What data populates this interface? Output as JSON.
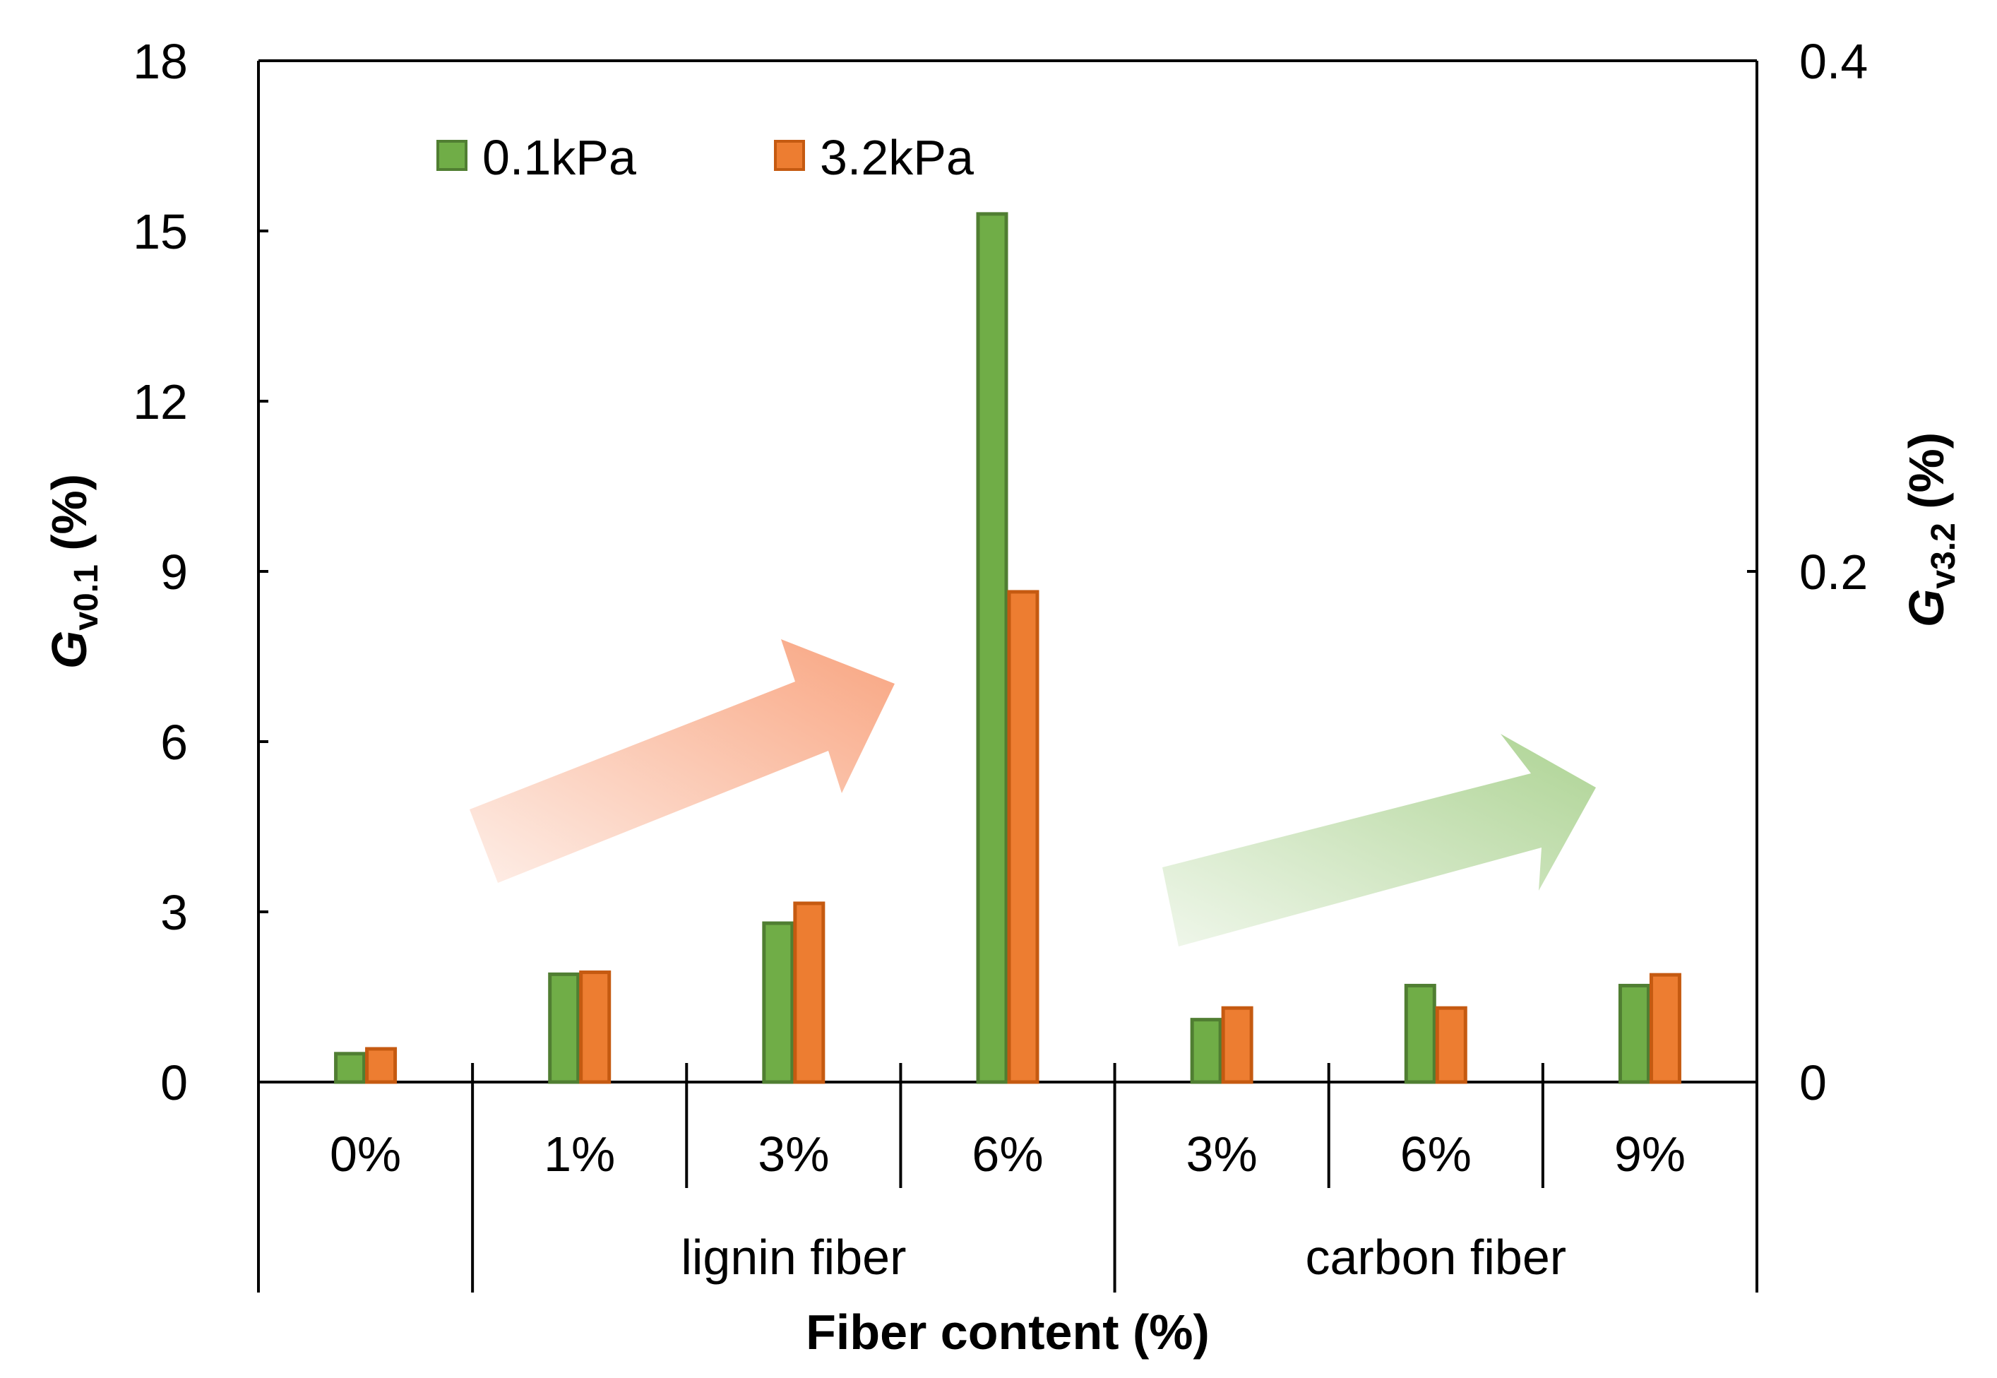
{
  "chart_data": {
    "type": "bar",
    "title": "",
    "xlabel": "Fiber content (%)",
    "ylabel": {
      "symbol": "G",
      "subscript": "v0.1",
      "unit": " (%)"
    },
    "y2label": {
      "symbol": "G",
      "subscript": "v3.2",
      "unit": " (%)"
    },
    "categories": [
      "0%",
      "1%",
      "3%",
      "6%",
      "3%",
      "6%",
      "9%"
    ],
    "groups": [
      {
        "label": "",
        "start": 0,
        "end": 0
      },
      {
        "label": "lignin fiber",
        "start": 1,
        "end": 3
      },
      {
        "label": "carbon fiber",
        "start": 4,
        "end": 6
      }
    ],
    "series": [
      {
        "name": "0.1kPa",
        "axis": "left",
        "color": "#70AD47",
        "stroke": "#507E32",
        "values": [
          0.5,
          1.9,
          2.8,
          15.3,
          1.1,
          1.7,
          1.7
        ]
      },
      {
        "name": "3.2kPa",
        "axis": "right",
        "color": "#ED7D31",
        "stroke": "#C55A11",
        "values": [
          0.013,
          0.043,
          0.07,
          0.192,
          0.029,
          0.029,
          0.042
        ]
      }
    ],
    "ylim": [
      0,
      18
    ],
    "yticks": [
      0,
      3,
      6,
      9,
      12,
      15,
      18
    ],
    "y2lim": [
      0,
      0.4
    ],
    "y2ticks": [
      "0",
      "0.2",
      "0.4"
    ],
    "legend_position": "top-left",
    "annotations": [
      {
        "type": "arrow",
        "color": "#F8A07A",
        "description": "increasing trend over lignin fiber"
      },
      {
        "type": "arrow",
        "color": "#A9D18E",
        "description": "increasing trend over carbon fiber"
      }
    ]
  }
}
